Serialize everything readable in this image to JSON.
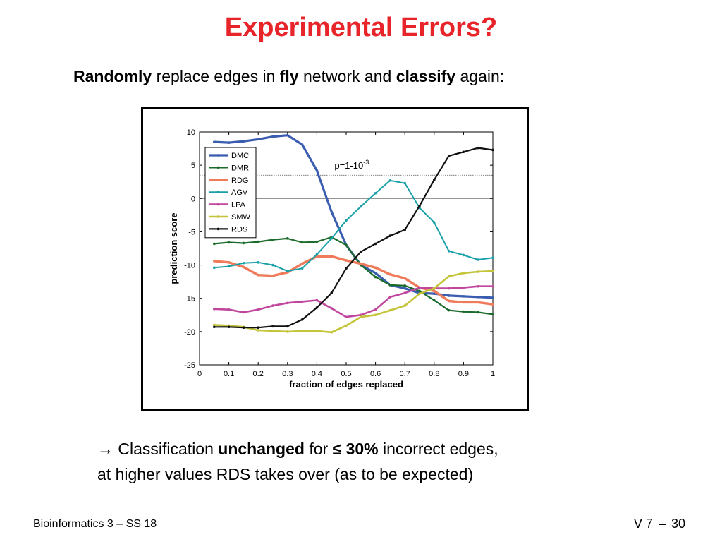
{
  "slide": {
    "title": "Experimental Errors?",
    "subtitle": {
      "b1": "Randomly",
      "t1": " replace edges in ",
      "b2": "fly",
      "t2": " network and ",
      "b3": "classify",
      "t3": " again:"
    },
    "conclusion": {
      "line1_a": "→ Classification ",
      "line1_b": "unchanged",
      "line1_c": " for ",
      "line1_d": "≤ 30%",
      "line1_e": " incorrect edges,",
      "line2": "at higher values RDS takes over (as to be expected)"
    },
    "footer_left": "Bioinformatics 3 – SS 18",
    "footer_right_a": "V 7",
    "footer_right_dash": "–",
    "footer_right_b": "30"
  },
  "chart_data": {
    "type": "line",
    "xlabel": "fraction of edges replaced",
    "ylabel": "prediction score",
    "xlim": [
      0,
      1
    ],
    "ylim": [
      -25,
      10
    ],
    "x_ticks": [
      "0",
      "0.1",
      "0.2",
      "0.3",
      "0.4",
      "0.5",
      "0.6",
      "0.7",
      "0.8",
      "0.9",
      "1"
    ],
    "y_ticks": [
      "10",
      "5",
      "0",
      "-5",
      "-10",
      "-15",
      "-20",
      "-25"
    ],
    "legend_position": "top-left",
    "annotation": {
      "text": "p=1-10",
      "sup": "-3"
    },
    "reference_lines": [
      3.5,
      0
    ],
    "x": [
      0.05,
      0.1,
      0.15,
      0.2,
      0.25,
      0.3,
      0.35,
      0.4,
      0.45,
      0.5,
      0.55,
      0.6,
      0.65,
      0.7,
      0.75,
      0.8,
      0.85,
      0.9,
      0.95,
      1.0
    ],
    "series": [
      {
        "name": "DMC",
        "color": "#3a5db0",
        "width": 3.2,
        "values": [
          8.5,
          8.4,
          8.6,
          8.9,
          9.3,
          9.5,
          8.1,
          4.2,
          -2.0,
          -7.0,
          -10.0,
          -11.2,
          -13.0,
          -13.5,
          -14.2,
          -14.3,
          -14.6,
          -14.7,
          -14.8,
          -14.9
        ]
      },
      {
        "name": "DMR",
        "color": "#1b6b2a",
        "width": 2.2,
        "values": [
          -6.8,
          -6.6,
          -6.7,
          -6.5,
          -6.2,
          -6.0,
          -6.6,
          -6.5,
          -5.8,
          -7.0,
          -10.0,
          -11.8,
          -13.0,
          -13.1,
          -13.9,
          -15.3,
          -16.8,
          -17.0,
          -17.1,
          -17.4
        ]
      },
      {
        "name": "RDG",
        "color": "#ef7b5a",
        "width": 3.4,
        "values": [
          -9.4,
          -9.6,
          -10.3,
          -11.5,
          -11.6,
          -11.1,
          -9.8,
          -8.7,
          -8.7,
          -9.3,
          -9.8,
          -10.4,
          -11.4,
          -12.0,
          -13.4,
          -13.9,
          -15.4,
          -15.6,
          -15.6,
          -15.9
        ]
      },
      {
        "name": "AGV",
        "color": "#1aa0a8",
        "width": 2.0,
        "values": [
          -10.4,
          -10.2,
          -9.7,
          -9.6,
          -10.0,
          -10.9,
          -10.5,
          -8.4,
          -6.0,
          -3.3,
          -1.2,
          0.8,
          2.7,
          2.3,
          -1.4,
          -3.6,
          -7.9,
          -8.5,
          -9.2,
          -8.9
        ]
      },
      {
        "name": "LPA",
        "color": "#c0469e",
        "width": 2.6,
        "values": [
          -16.6,
          -16.7,
          -17.1,
          -16.7,
          -16.1,
          -15.7,
          -15.5,
          -15.3,
          -16.5,
          -17.8,
          -17.5,
          -16.7,
          -14.8,
          -14.2,
          -13.4,
          -13.5,
          -13.5,
          -13.4,
          -13.2,
          -13.2
        ]
      },
      {
        "name": "SMW",
        "color": "#c4c43a",
        "width": 2.6,
        "values": [
          -19.0,
          -19.1,
          -19.3,
          -19.8,
          -19.9,
          -20.0,
          -19.9,
          -19.9,
          -20.1,
          -19.1,
          -17.8,
          -17.5,
          -16.8,
          -16.1,
          -14.3,
          -13.5,
          -11.7,
          -11.2,
          -11.0,
          -10.9
        ]
      },
      {
        "name": "RDS",
        "color": "#111111",
        "width": 2.2,
        "values": [
          -19.3,
          -19.3,
          -19.4,
          -19.4,
          -19.2,
          -19.2,
          -18.2,
          -16.4,
          -14.2,
          -10.5,
          -8.0,
          -6.8,
          -5.6,
          -4.7,
          -1.1,
          2.8,
          6.4,
          7.0,
          7.6,
          7.3
        ]
      }
    ]
  }
}
